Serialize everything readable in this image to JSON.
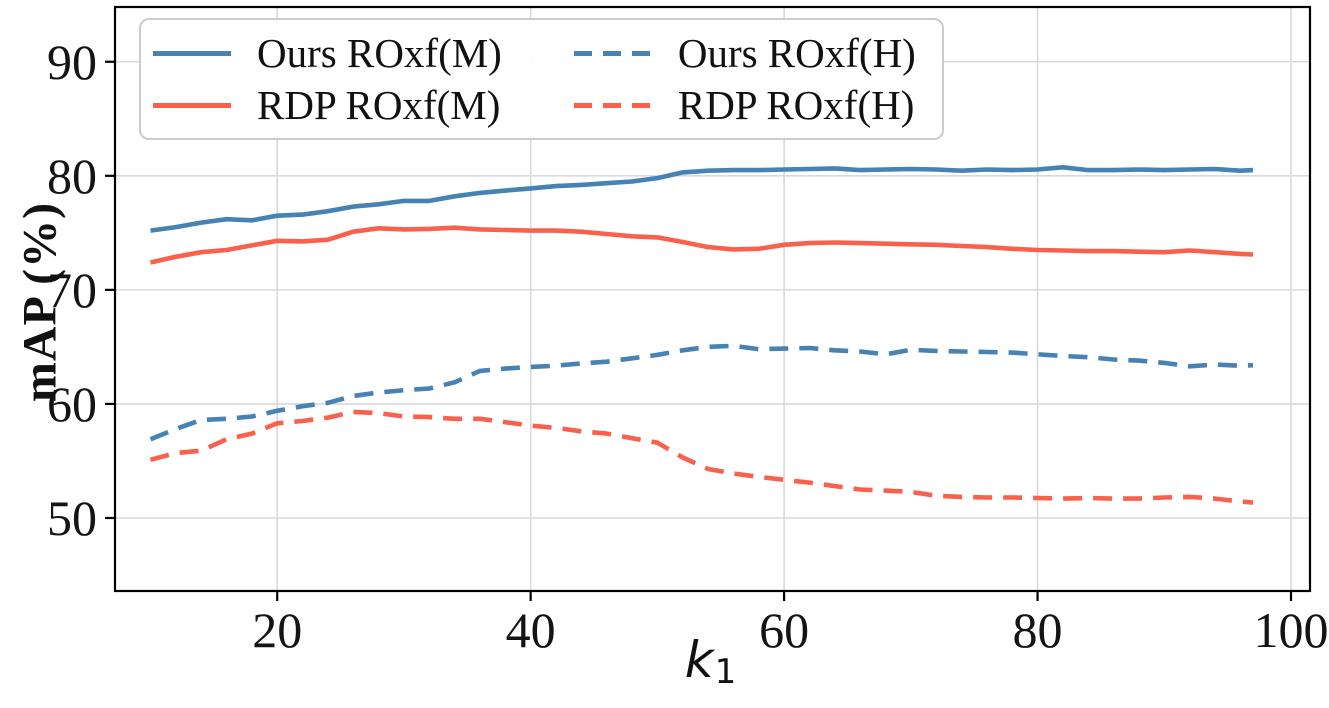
{
  "chart_data": {
    "type": "line",
    "title": "",
    "ylabel": "mAP (%)",
    "xlabel_base": "k",
    "xlabel_sub": "1",
    "xlim": [
      7.2,
      101.5
    ],
    "ylim": [
      43.6,
      94.8
    ],
    "xticks": [
      20,
      40,
      60,
      80,
      100
    ],
    "xtick_labels": [
      "20",
      "40",
      "60",
      "80",
      "100"
    ],
    "yticks": [
      50,
      60,
      70,
      80,
      90
    ],
    "ytick_labels": [
      "50",
      "60",
      "70",
      "80",
      "90"
    ],
    "grid": true,
    "legend_position": "upper left",
    "legend_ncol": 2,
    "colors": {
      "blue": "#4682b4",
      "red": "#f9614d",
      "grid": "#d9d9d9",
      "spine": "#000000",
      "text": "#141414"
    },
    "x": [
      10,
      12,
      14,
      16,
      18,
      20,
      22,
      24,
      26,
      28,
      30,
      32,
      34,
      36,
      38,
      40,
      42,
      44,
      46,
      48,
      50,
      52,
      54,
      56,
      58,
      60,
      62,
      64,
      66,
      68,
      70,
      72,
      74,
      76,
      78,
      80,
      82,
      84,
      86,
      88,
      90,
      92,
      94,
      96,
      97
    ],
    "series": [
      {
        "name": "Ours ROxf(M)",
        "color": "#4682b4",
        "style": "solid",
        "values": [
          75.2,
          75.5,
          75.9,
          76.2,
          76.1,
          76.5,
          76.6,
          76.9,
          77.3,
          77.5,
          77.8,
          77.8,
          78.2,
          78.5,
          78.7,
          78.9,
          79.1,
          79.2,
          79.35,
          79.5,
          79.8,
          80.3,
          80.45,
          80.5,
          80.5,
          80.55,
          80.6,
          80.65,
          80.5,
          80.55,
          80.6,
          80.55,
          80.45,
          80.55,
          80.5,
          80.55,
          80.75,
          80.5,
          80.5,
          80.55,
          80.5,
          80.55,
          80.6,
          80.45,
          80.5
        ]
      },
      {
        "name": "RDP ROxf(M)",
        "color": "#f9614d",
        "style": "solid",
        "values": [
          72.4,
          72.9,
          73.3,
          73.5,
          73.9,
          74.3,
          74.25,
          74.4,
          75.1,
          75.4,
          75.3,
          75.35,
          75.45,
          75.3,
          75.25,
          75.2,
          75.2,
          75.1,
          74.9,
          74.7,
          74.6,
          74.2,
          73.75,
          73.55,
          73.6,
          73.95,
          74.1,
          74.15,
          74.1,
          74.05,
          74.0,
          73.95,
          73.85,
          73.75,
          73.6,
          73.5,
          73.45,
          73.4,
          73.4,
          73.35,
          73.3,
          73.45,
          73.3,
          73.15,
          73.1
        ]
      },
      {
        "name": "Ours ROxf(H)",
        "color": "#4682b4",
        "style": "dashed",
        "values": [
          56.9,
          57.8,
          58.6,
          58.7,
          58.9,
          59.4,
          59.8,
          60.1,
          60.7,
          61.0,
          61.2,
          61.35,
          61.9,
          62.9,
          63.1,
          63.25,
          63.35,
          63.55,
          63.7,
          64.0,
          64.3,
          64.7,
          65.0,
          65.1,
          64.8,
          64.85,
          64.9,
          64.7,
          64.6,
          64.35,
          64.75,
          64.65,
          64.6,
          64.55,
          64.5,
          64.35,
          64.2,
          64.1,
          63.9,
          63.8,
          63.6,
          63.3,
          63.45,
          63.35,
          63.4
        ]
      },
      {
        "name": "RDP ROxf(H)",
        "color": "#f9614d",
        "style": "dashed",
        "values": [
          55.1,
          55.7,
          55.9,
          56.9,
          57.4,
          58.3,
          58.5,
          58.8,
          59.3,
          59.2,
          58.9,
          58.85,
          58.7,
          58.7,
          58.4,
          58.1,
          57.9,
          57.6,
          57.4,
          57.0,
          56.6,
          55.3,
          54.3,
          53.9,
          53.6,
          53.35,
          53.1,
          52.8,
          52.5,
          52.4,
          52.3,
          51.95,
          51.85,
          51.8,
          51.8,
          51.75,
          51.7,
          51.75,
          51.7,
          51.7,
          51.8,
          51.85,
          51.7,
          51.45,
          51.35
        ]
      }
    ]
  }
}
